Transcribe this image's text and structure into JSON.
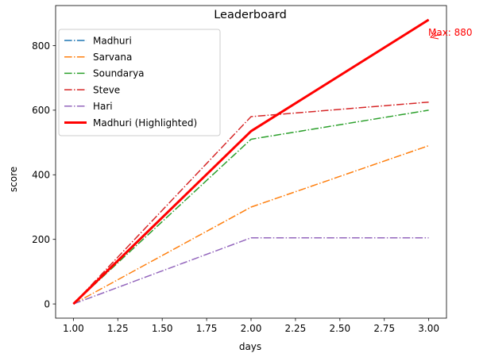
{
  "chart_data": {
    "type": "line",
    "title": "Leaderboard",
    "xlabel": "days",
    "ylabel": "score",
    "xlim": [
      0.9,
      3.1
    ],
    "ylim": [
      -44,
      924
    ],
    "x": [
      1,
      2,
      3
    ],
    "xticks": [
      "1.00",
      "1.25",
      "1.50",
      "1.75",
      "2.00",
      "2.25",
      "2.50",
      "2.75",
      "3.00"
    ],
    "xtick_values": [
      1.0,
      1.25,
      1.5,
      1.75,
      2.0,
      2.25,
      2.5,
      2.75,
      3.0
    ],
    "yticks": [
      "0",
      "200",
      "400",
      "600",
      "800"
    ],
    "ytick_values": [
      0,
      200,
      400,
      600,
      800
    ],
    "grid": false,
    "legend_position": "top-left",
    "series": [
      {
        "name": "Madhuri",
        "values": [
          0,
          535,
          880
        ],
        "color": "#1f77b4",
        "style": "dashdot"
      },
      {
        "name": "Sarvana",
        "values": [
          0,
          300,
          490
        ],
        "color": "#ff7f0e",
        "style": "dashdot"
      },
      {
        "name": "Soundarya",
        "values": [
          0,
          510,
          600
        ],
        "color": "#2ca02c",
        "style": "dashdot"
      },
      {
        "name": "Steve",
        "values": [
          0,
          580,
          625
        ],
        "color": "#d62728",
        "style": "dashdot"
      },
      {
        "name": "Hari",
        "values": [
          0,
          205,
          205
        ],
        "color": "#9467bd",
        "style": "dashdot"
      },
      {
        "name": "Madhuri (Highlighted)",
        "values": [
          0,
          535,
          880
        ],
        "color": "#ff0000",
        "style": "solid-thick"
      }
    ],
    "annotation": {
      "text": "Max: 880",
      "x": 3,
      "y": 880,
      "color": "#ff0000"
    }
  }
}
